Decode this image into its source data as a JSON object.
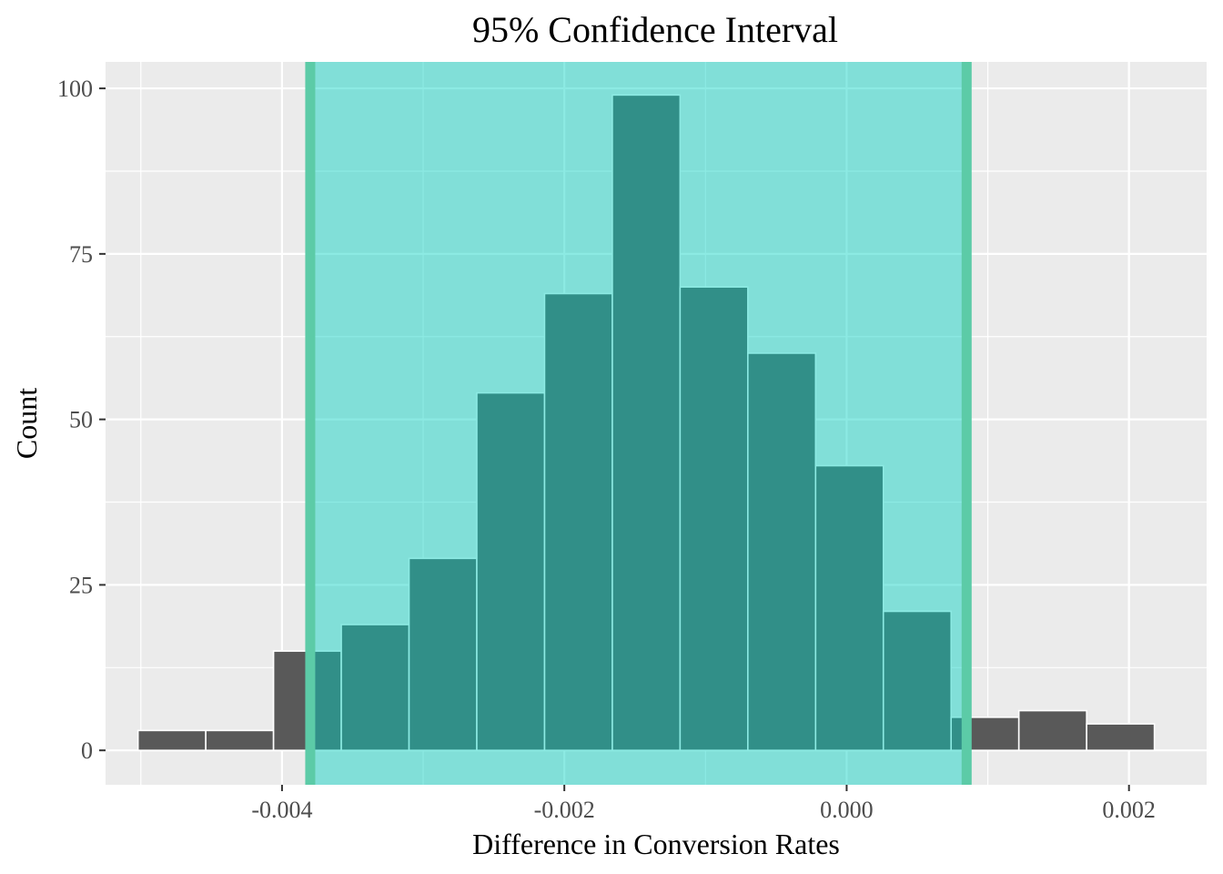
{
  "chart_data": {
    "type": "bar",
    "title": "95% Confidence Interval",
    "xlabel": "Difference in Conversion Rates",
    "ylabel": "Count",
    "xlim": [
      -0.00525,
      0.00255
    ],
    "ylim": [
      -5.2,
      104
    ],
    "x_ticks": [
      {
        "value": -0.004,
        "label": "-0.004"
      },
      {
        "value": -0.002,
        "label": "-0.002"
      },
      {
        "value": 0.0,
        "label": "0.000"
      },
      {
        "value": 0.002,
        "label": "0.002"
      }
    ],
    "y_ticks": [
      {
        "value": 0,
        "label": "0"
      },
      {
        "value": 25,
        "label": "25"
      },
      {
        "value": 50,
        "label": "50"
      },
      {
        "value": 75,
        "label": "75"
      },
      {
        "value": 100,
        "label": "100"
      }
    ],
    "grid": true,
    "bin_width": 0.00048,
    "bins": [
      {
        "center": -0.00478,
        "count": 3
      },
      {
        "center": -0.0043,
        "count": 3
      },
      {
        "center": -0.00382,
        "count": 15
      },
      {
        "center": -0.00334,
        "count": 19
      },
      {
        "center": -0.00286,
        "count": 29
      },
      {
        "center": -0.00238,
        "count": 54
      },
      {
        "center": -0.0019,
        "count": 69
      },
      {
        "center": -0.00142,
        "count": 99
      },
      {
        "center": -0.00094,
        "count": 70
      },
      {
        "center": -0.00046,
        "count": 60
      },
      {
        "center": 2e-05,
        "count": 43
      },
      {
        "center": 0.0005,
        "count": 21
      },
      {
        "center": 0.00098,
        "count": 5
      },
      {
        "center": 0.00146,
        "count": 6
      },
      {
        "center": 0.00194,
        "count": 4
      }
    ],
    "confidence_interval": {
      "lower": -0.0038,
      "upper": 0.00085
    },
    "colors": {
      "bar": "#595959",
      "bar_outline": "#ffffff",
      "ci_fill": "#00d1c0",
      "ci_fill_opacity": 0.45,
      "ci_line": "#5ccba7",
      "panel_bg": "#ebebeb",
      "grid": "#ffffff"
    }
  }
}
